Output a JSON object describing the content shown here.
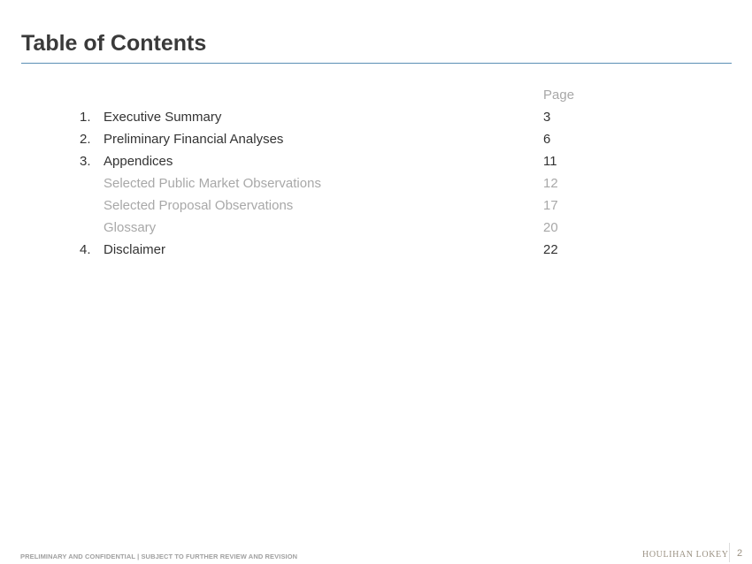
{
  "title": "Table of Contents",
  "page_header": "Page",
  "items": [
    {
      "num": "1.",
      "label": "Executive Summary",
      "page": "3"
    },
    {
      "num": "2.",
      "label": "Preliminary Financial Analyses",
      "page": "6"
    },
    {
      "num": "3.",
      "label": "Appendices",
      "page": "11"
    },
    {
      "num": "",
      "label": "Selected Public Market Observations",
      "page": "12"
    },
    {
      "num": "",
      "label": "Selected Proposal Observations",
      "page": "17"
    },
    {
      "num": "",
      "label": "Glossary",
      "page": "20"
    },
    {
      "num": "4.",
      "label": "Disclaimer",
      "page": "22"
    }
  ],
  "footer": {
    "note": "PRELIMINARY AND CONFIDENTIAL | SUBJECT TO FURTHER REVIEW AND REVISION",
    "logo": "HOULIHAN LOKEY",
    "page_number": "2"
  },
  "colors": {
    "rule": "#5b8fb5",
    "sub_item": "#a8a8a8",
    "logo": "#9b9283"
  }
}
